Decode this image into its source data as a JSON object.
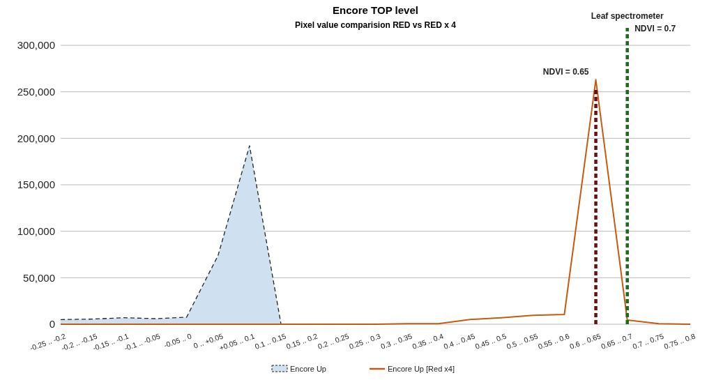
{
  "chart_data": {
    "type": "line",
    "title": "Encore TOP level",
    "subtitle": "Pixel value comparision RED vs RED x 4",
    "categories": [
      "-0.25 .. -0.2",
      "-0.2 .. -0.15",
      "-0.15 .. -0.1",
      "-0.1 .. -0.05",
      "-0.05 .. 0",
      "0 .. +0.05",
      "+0.05 .. 0.1",
      "0.1 .. 0.15",
      "0.15 .. 0.2",
      "0.2 .. 0.25",
      "0.25 .. 0.3",
      "0.3 .. 0.35",
      "0.35 .. 0.4",
      "0.4 .. 0.45",
      "0.45 .. 0.5",
      "0.5 .. 0.55",
      "0.55 .. 0.6",
      "0.6 .. 0.65",
      "0.65 .. 0.7",
      "0.7 .. 0.75",
      "0.75 .. 0.8"
    ],
    "series": [
      {
        "name": "Encore Up",
        "type": "area",
        "color": "#cfe0f1",
        "line_style": "dashed",
        "values": [
          5000,
          5500,
          7000,
          6000,
          7500,
          74000,
          192000,
          0,
          null,
          null,
          null,
          null,
          null,
          null,
          null,
          null,
          null,
          null,
          null,
          null,
          null
        ]
      },
      {
        "name": "Encore Up [Red x4]",
        "color": "#c55a11",
        "line_style": "solid",
        "values": [
          0,
          0,
          0,
          0,
          0,
          0,
          0,
          0,
          0,
          0,
          0,
          500,
          500,
          5000,
          7000,
          9500,
          10500,
          263000,
          4500,
          500,
          0
        ]
      }
    ],
    "ylim": [
      0,
      300000
    ],
    "yticks": [
      {
        "value": 0,
        "label": "0"
      },
      {
        "value": 50000,
        "label": "50,000"
      },
      {
        "value": 100000,
        "label": "100,000"
      },
      {
        "value": 150000,
        "label": "150,000"
      },
      {
        "value": 200000,
        "label": "200,000"
      },
      {
        "value": 250000,
        "label": "250,000"
      },
      {
        "value": 300000,
        "label": "300,000"
      }
    ],
    "grid": "y",
    "legend": "bottom",
    "marker": "none",
    "ref_lines": [
      {
        "axis": "x",
        "value": "0.6 .. 0.65",
        "label": "NDVI = 0.65",
        "color": "#6b0f14",
        "line_style": "dashed"
      },
      {
        "axis": "x",
        "value": "0.65 .. 0.7",
        "label": "Leaf spectrometer\nNDVI = 0.7",
        "color": "#1e6b1e",
        "line_style": "dashed"
      }
    ]
  }
}
